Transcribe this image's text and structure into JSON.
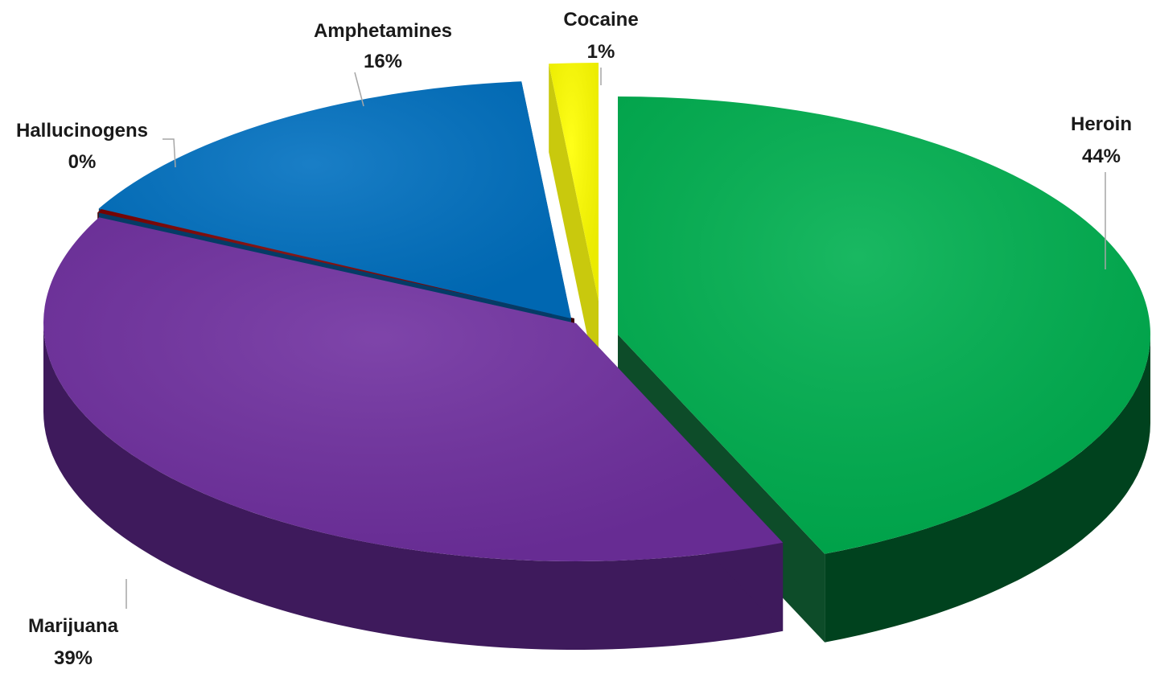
{
  "chart_data": {
    "type": "pie",
    "title": "",
    "style": "3d-exploded",
    "slices": [
      {
        "name": "Heroin",
        "value": 44,
        "label": "44%",
        "color": "#00B050",
        "dark": "#00421E"
      },
      {
        "name": "Marijuana",
        "value": 39,
        "label": "39%",
        "color": "#7030A0",
        "dark": "#3E1A5C"
      },
      {
        "name": "Hallucinogens",
        "value": 0.3,
        "label": "0%",
        "color": "#7A0000",
        "dark": "#3E0000"
      },
      {
        "name": "Amphetamines",
        "value": 16,
        "label": "16%",
        "color": "#0070C0",
        "dark": "#023E6B"
      },
      {
        "name": "Cocaine",
        "value": 1.5,
        "label": "1%",
        "color": "#FFFF00",
        "dark": "#C6C600"
      }
    ]
  }
}
